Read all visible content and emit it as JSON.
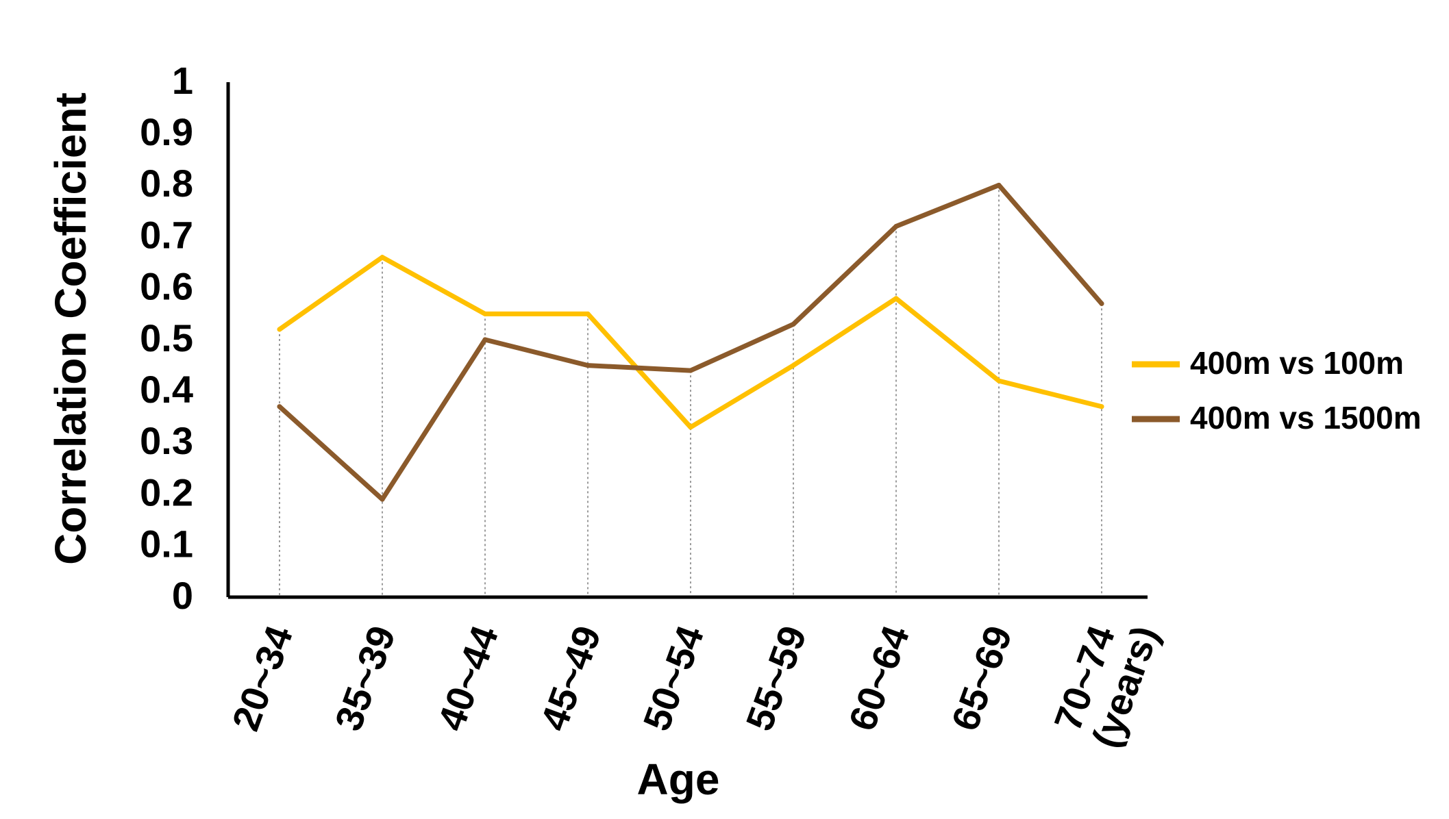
{
  "chart_data": {
    "type": "line",
    "title": "",
    "xlabel": "Age",
    "ylabel": "Correlation Coefficient",
    "x_unit_label": "(years)",
    "categories": [
      "20~34",
      "35~39",
      "40~44",
      "45~49",
      "50~54",
      "55~59",
      "60~64",
      "65~69",
      "70~74"
    ],
    "series": [
      {
        "name": "400m vs 100m",
        "color": "#FFC000",
        "values": [
          0.52,
          0.66,
          0.55,
          0.55,
          0.33,
          0.45,
          0.58,
          0.42,
          0.37
        ]
      },
      {
        "name": "400m vs 1500m",
        "color": "#8B5A2B",
        "values": [
          0.37,
          0.19,
          0.5,
          0.45,
          0.44,
          0.53,
          0.72,
          0.8,
          0.57
        ]
      }
    ],
    "ylim": [
      0,
      1
    ],
    "yticks": [
      "0",
      "0.1",
      "0.2",
      "0.3",
      "0.4",
      "0.5",
      "0.6",
      "0.7",
      "0.8",
      "0.9",
      "1"
    ],
    "ytick_values": [
      0,
      0.1,
      0.2,
      0.3,
      0.4,
      0.5,
      0.6,
      0.7,
      0.8,
      0.9,
      1
    ],
    "grid": "vertical dotted drop lines",
    "legend": "right"
  }
}
